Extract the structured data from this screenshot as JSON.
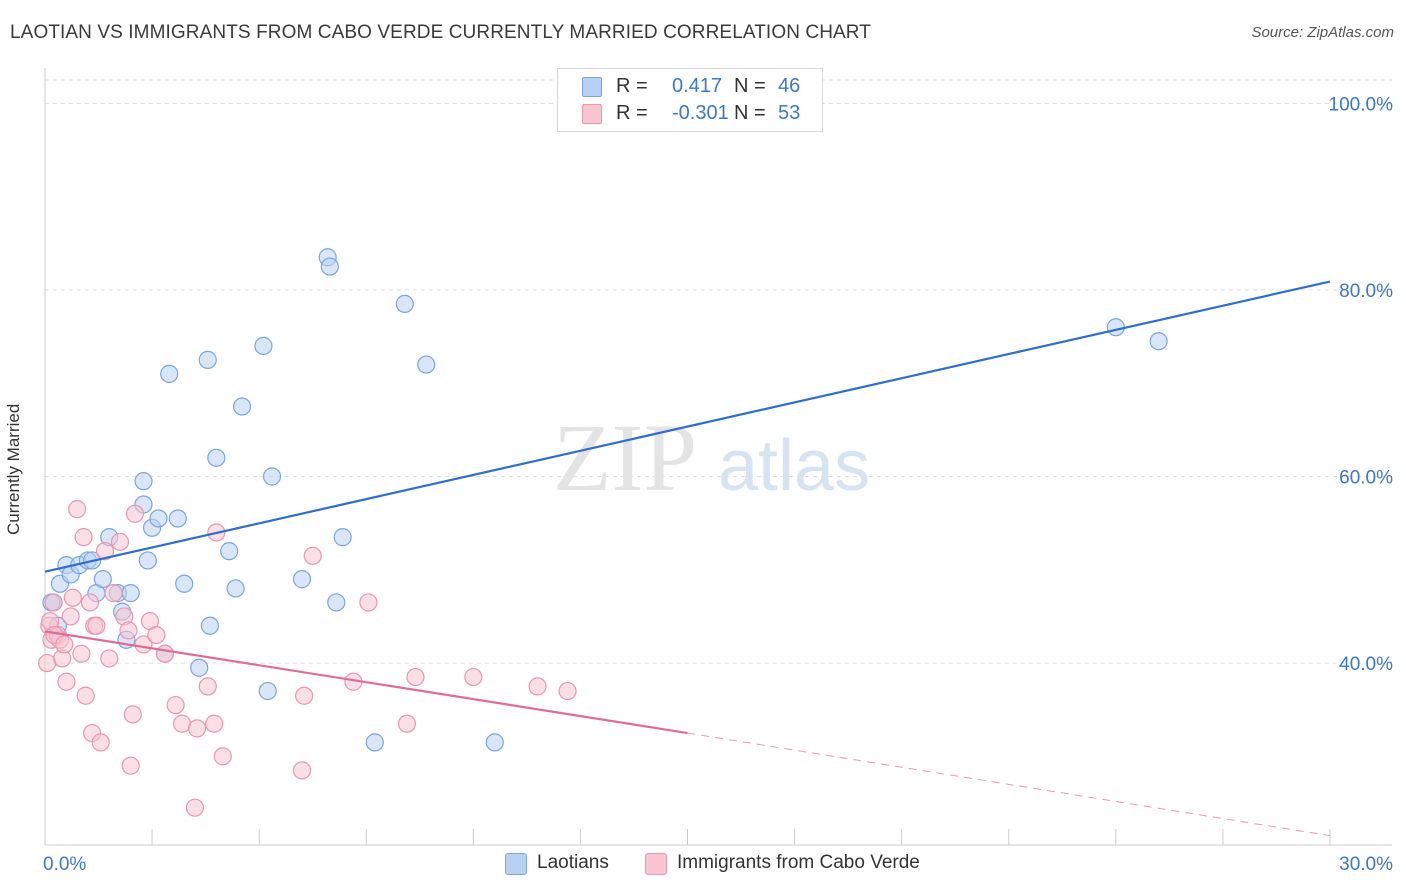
{
  "header": {
    "title": "LAOTIAN VS IMMIGRANTS FROM CABO VERDE CURRENTLY MARRIED CORRELATION CHART",
    "source": "Source: ZipAtlas.com"
  },
  "legend": {
    "rows": [
      {
        "r_label": "R =",
        "r_value": "0.417",
        "n_label": "N =",
        "n_value": "46"
      },
      {
        "r_label": "R =",
        "r_value": "-0.301",
        "n_label": "N =",
        "n_value": "53"
      }
    ]
  },
  "watermark": {
    "part1": "ZIP",
    "part2": "atlas"
  },
  "colors": {
    "laotian_fill": "#b8d1f2",
    "laotian_stroke": "#7aa6de",
    "laotian_line": "#2e6fce",
    "cabo_fill": "#f7c4d2",
    "cabo_stroke": "#e996b0",
    "cabo_line": "#e06c95",
    "grid": "#dddddd",
    "tick_label": "#3a78c9"
  },
  "chart_data": {
    "type": "scatter",
    "xlabel": "",
    "ylabel": "Currently Married",
    "xlim": [
      0,
      30
    ],
    "ylim": [
      20.5,
      102.5
    ],
    "x_tick_labels": [
      {
        "value": 0,
        "label": "0.0%"
      },
      {
        "value": 30,
        "label": "30.0%"
      }
    ],
    "y_tick_labels": [
      {
        "value": 40,
        "label": "40.0%"
      },
      {
        "value": 60,
        "label": "60.0%"
      },
      {
        "value": 80,
        "label": "80.0%"
      },
      {
        "value": 100,
        "label": "100.0%"
      }
    ],
    "series": [
      {
        "name": "Laotians",
        "color": "#7aa6de",
        "points": [
          [
            0.2,
            46.5
          ],
          [
            0.3,
            44.0
          ],
          [
            0.35,
            48.5
          ],
          [
            0.5,
            50.5
          ],
          [
            0.6,
            49.5
          ],
          [
            0.8,
            50.5
          ],
          [
            1.0,
            51.0
          ],
          [
            1.1,
            51.0
          ],
          [
            1.2,
            47.5
          ],
          [
            1.35,
            49.0
          ],
          [
            1.5,
            53.5
          ],
          [
            1.7,
            47.5
          ],
          [
            1.8,
            45.5
          ],
          [
            1.9,
            42.5
          ],
          [
            2.0,
            47.5
          ],
          [
            2.3,
            57.0
          ],
          [
            2.3,
            59.5
          ],
          [
            2.4,
            51.0
          ],
          [
            2.5,
            54.5
          ],
          [
            2.65,
            55.5
          ],
          [
            2.8,
            41.0
          ],
          [
            2.9,
            71.0
          ],
          [
            3.1,
            55.5
          ],
          [
            3.25,
            48.5
          ],
          [
            3.6,
            39.5
          ],
          [
            3.8,
            72.5
          ],
          [
            3.85,
            44.0
          ],
          [
            4.0,
            62.0
          ],
          [
            4.3,
            52.0
          ],
          [
            4.45,
            48.0
          ],
          [
            4.6,
            67.5
          ],
          [
            5.1,
            74.0
          ],
          [
            5.2,
            37.0
          ],
          [
            5.3,
            60.0
          ],
          [
            6.0,
            49.0
          ],
          [
            6.6,
            83.5
          ],
          [
            6.65,
            82.5
          ],
          [
            6.8,
            46.5
          ],
          [
            6.95,
            53.5
          ],
          [
            7.7,
            31.5
          ],
          [
            8.4,
            78.5
          ],
          [
            8.9,
            72.0
          ],
          [
            10.5,
            31.5
          ],
          [
            25.0,
            76.0
          ],
          [
            26.0,
            74.5
          ],
          [
            0.15,
            46.5
          ]
        ],
        "trend": {
          "x": [
            0,
            30
          ],
          "y": [
            49.8,
            80.9
          ]
        }
      },
      {
        "name": "Immigrants from Cabo Verde",
        "color": "#e996b0",
        "points": [
          [
            0.05,
            40.0
          ],
          [
            0.1,
            44.0
          ],
          [
            0.15,
            42.5
          ],
          [
            0.2,
            46.5
          ],
          [
            0.3,
            43.0
          ],
          [
            0.35,
            42.5
          ],
          [
            0.4,
            40.5
          ],
          [
            0.5,
            38.0
          ],
          [
            0.6,
            45.0
          ],
          [
            0.65,
            47.0
          ],
          [
            0.75,
            56.5
          ],
          [
            0.85,
            41.0
          ],
          [
            0.9,
            53.5
          ],
          [
            0.95,
            36.5
          ],
          [
            1.05,
            46.5
          ],
          [
            1.1,
            32.5
          ],
          [
            1.15,
            44.0
          ],
          [
            1.2,
            44.0
          ],
          [
            1.3,
            31.5
          ],
          [
            1.4,
            52.0
          ],
          [
            1.5,
            40.5
          ],
          [
            1.6,
            47.5
          ],
          [
            1.75,
            53.0
          ],
          [
            1.85,
            45.0
          ],
          [
            1.95,
            43.5
          ],
          [
            2.0,
            29.0
          ],
          [
            2.05,
            34.5
          ],
          [
            2.1,
            56.0
          ],
          [
            2.3,
            42.0
          ],
          [
            2.45,
            44.5
          ],
          [
            2.6,
            43.0
          ],
          [
            2.8,
            41.0
          ],
          [
            3.05,
            35.5
          ],
          [
            3.2,
            33.5
          ],
          [
            3.5,
            24.5
          ],
          [
            3.55,
            33.0
          ],
          [
            3.8,
            37.5
          ],
          [
            3.95,
            33.5
          ],
          [
            4.0,
            54.0
          ],
          [
            4.15,
            30.0
          ],
          [
            6.0,
            28.5
          ],
          [
            6.05,
            36.5
          ],
          [
            6.25,
            51.5
          ],
          [
            7.2,
            38.0
          ],
          [
            7.55,
            46.5
          ],
          [
            8.45,
            33.5
          ],
          [
            8.65,
            38.5
          ],
          [
            10.0,
            38.5
          ],
          [
            11.5,
            37.5
          ],
          [
            12.2,
            37.0
          ],
          [
            0.12,
            44.5
          ],
          [
            0.22,
            43.0
          ],
          [
            0.45,
            42.0
          ]
        ],
        "trend": {
          "x": [
            0,
            15
          ],
          "y": [
            43.4,
            32.5
          ]
        },
        "trend_dashed": {
          "x": [
            15,
            30
          ],
          "y": [
            32.5,
            21.5
          ]
        }
      }
    ],
    "grid": true,
    "legend_placement": "top-center"
  },
  "bottom_legend": {
    "items": [
      {
        "label": "Laotians"
      },
      {
        "label": "Immigrants from Cabo Verde"
      }
    ]
  }
}
